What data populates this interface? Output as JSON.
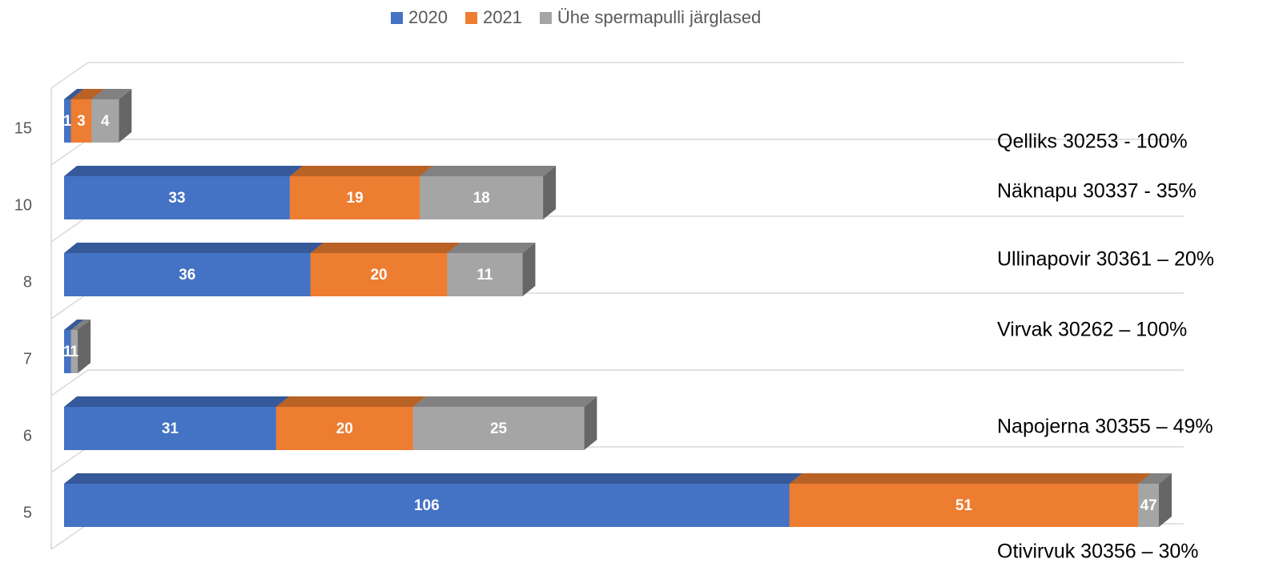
{
  "chart_data": {
    "type": "bar3d-stacked-horizontal",
    "categories": [
      "15",
      "10",
      "8",
      "7",
      "6",
      "5"
    ],
    "series": [
      {
        "name": "2020",
        "color": "#4472c4",
        "values": [
          1,
          33,
          36,
          1,
          31,
          106
        ]
      },
      {
        "name": "2021",
        "color": "#ed7d31",
        "values": [
          3,
          19,
          20,
          0,
          20,
          51
        ]
      },
      {
        "name": "Ühe spermapulli järglased",
        "color": "#a5a5a5",
        "values": [
          4,
          18,
          11,
          1,
          25,
          47
        ]
      }
    ],
    "xlim": [
      0,
      160
    ],
    "annotations": [
      "Qelliks 30253 - 100%",
      "Näknapu 30337 - 35%",
      "Ullinapovir 30361 – 20%",
      "Virvak 30262 – 100%",
      "Napojerna 30355 – 49%",
      "Otivirvuk 30356 – 30%"
    ],
    "legend": "top"
  }
}
